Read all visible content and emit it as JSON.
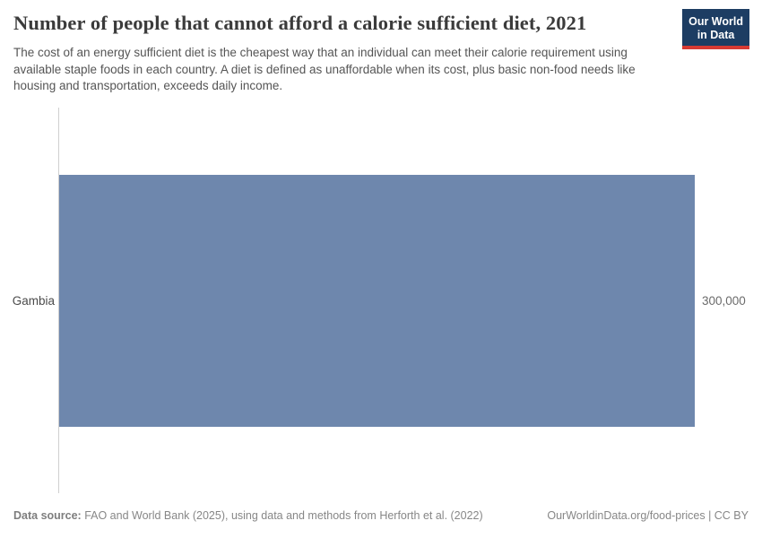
{
  "header": {
    "title": "Number of people that cannot afford a calorie sufficient diet, 2021",
    "subtitle": "The cost of an energy sufficient diet is the cheapest way that an individual can meet their calorie requirement using available staple foods in each country. A diet is defined as unaffordable when its cost, plus basic non-food needs like housing and transportation, exceeds daily income.",
    "logo": {
      "line1": "Our World",
      "line2": "in Data"
    }
  },
  "chart": {
    "entity_label": "Gambia",
    "value_label": "300,000"
  },
  "chart_data": {
    "type": "bar",
    "orientation": "horizontal",
    "title": "Number of people that cannot afford a calorie sufficient diet, 2021",
    "year": "2021",
    "categories": [
      "Gambia"
    ],
    "values": [
      300000
    ],
    "value_labels": [
      "300,000"
    ],
    "xlabel": "",
    "ylabel": "",
    "xlim": [
      0,
      300000
    ],
    "grid": false,
    "legend": false
  },
  "footer": {
    "datasource_label": "Data source:",
    "datasource_text": " FAO and World Bank (2025), using data and methods from Herforth et al. (2022)",
    "link_text": "OurWorldinData.org/food-prices | CC BY"
  },
  "colors": {
    "bar": "#6e87ad",
    "logo_bg": "#1d3d63",
    "logo_accent": "#d73a33",
    "axis_line": "#cfcfcf"
  }
}
